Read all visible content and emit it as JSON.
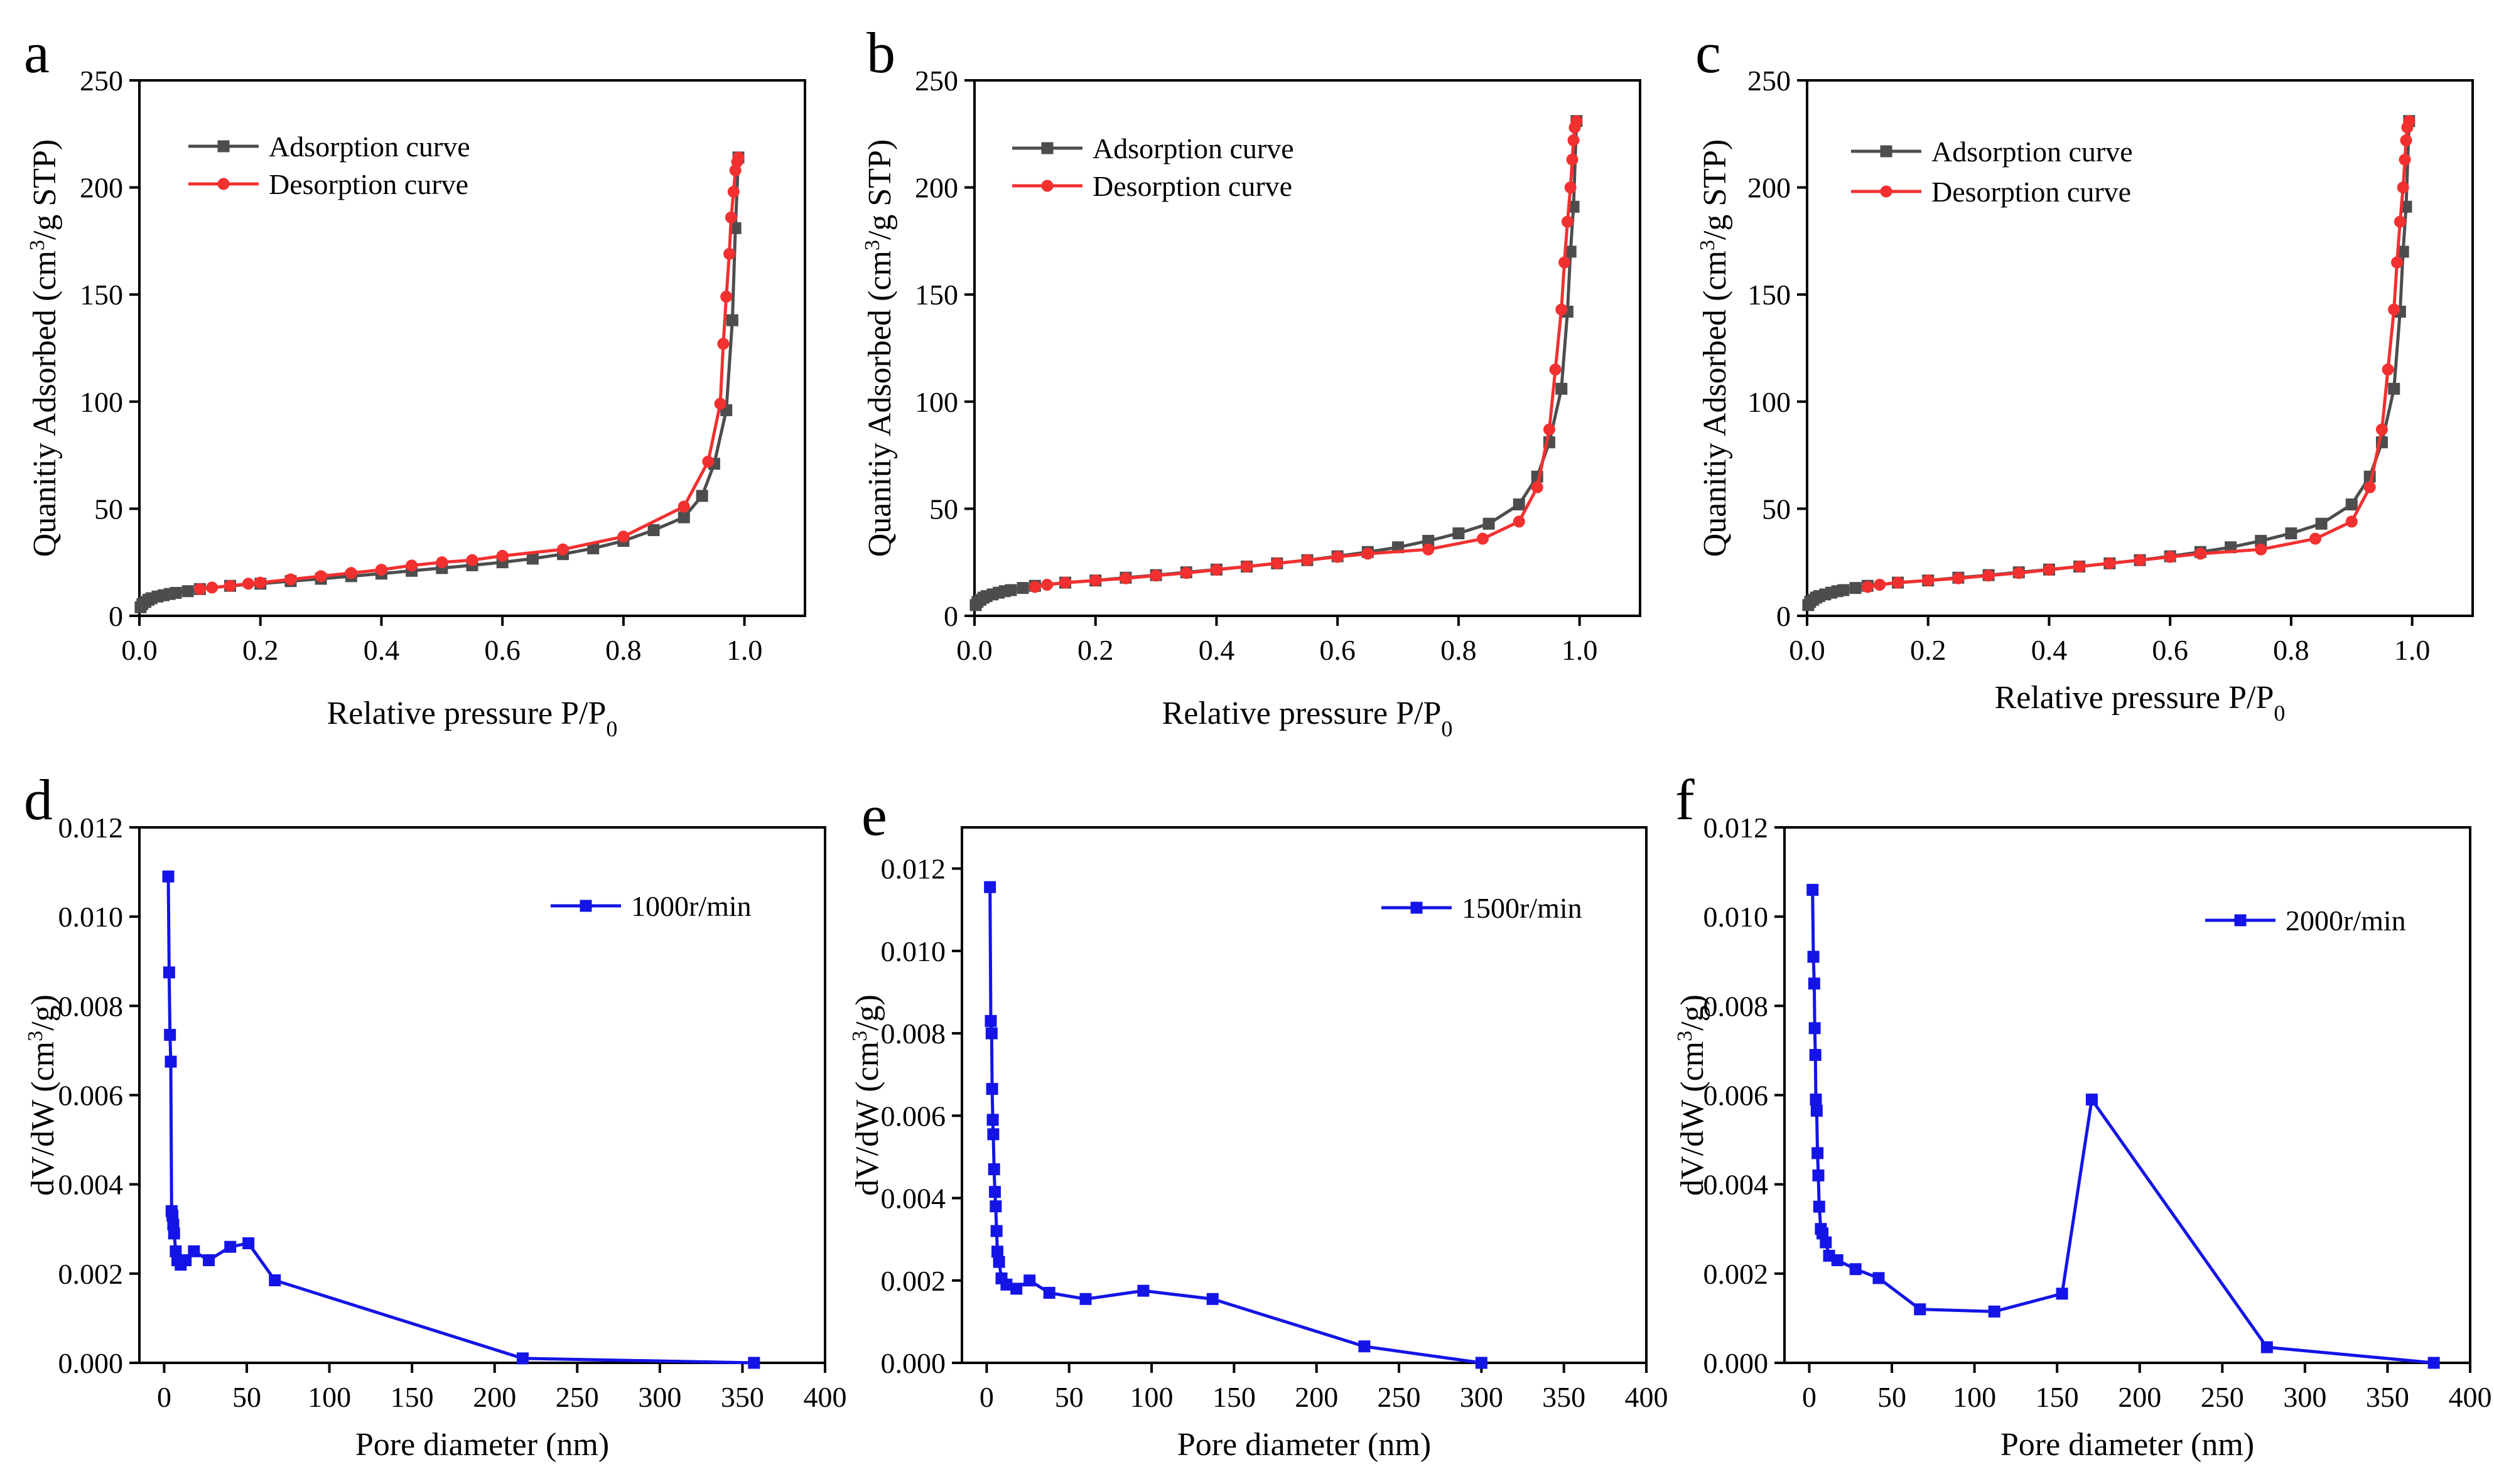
{
  "chart_data": [
    {
      "panel": "a",
      "type": "line",
      "xlabel": "Relative pressure P/P",
      "xlabel_sub": "0",
      "ylabel": "Quanitiy Adsorbed (cm",
      "ylabel_sup": "3",
      "ylabel_tail": "/g STP)",
      "xlim": [
        0,
        1.1
      ],
      "ylim": [
        0,
        250
      ],
      "xticks": [
        "0.0",
        "0.2",
        "0.4",
        "0.6",
        "0.8",
        "1.0"
      ],
      "yticks": [
        "0",
        "50",
        "100",
        "150",
        "200",
        "250"
      ],
      "legend_position": "top-left",
      "series": [
        {
          "name": "Adsorption curve",
          "color": "#4d4d4d",
          "marker": "square",
          "x": [
            0.002,
            0.005,
            0.01,
            0.015,
            0.02,
            0.03,
            0.04,
            0.05,
            0.06,
            0.08,
            0.1,
            0.15,
            0.2,
            0.25,
            0.3,
            0.35,
            0.4,
            0.45,
            0.5,
            0.55,
            0.6,
            0.65,
            0.7,
            0.75,
            0.8,
            0.85,
            0.9,
            0.93,
            0.95,
            0.97,
            0.98,
            0.985,
            0.99
          ],
          "y": [
            4,
            5.5,
            6.5,
            7.5,
            8.2,
            9,
            9.6,
            10.2,
            10.7,
            11.5,
            12.5,
            14,
            15,
            16.2,
            17.3,
            18.5,
            19.7,
            21,
            22.3,
            23.6,
            25,
            26.7,
            28.8,
            31.5,
            35,
            40,
            46,
            56,
            71,
            96,
            138,
            181,
            214
          ]
        },
        {
          "name": "Desorption curve",
          "color": "#f23030",
          "marker": "circle",
          "x": [
            0.99,
            0.988,
            0.985,
            0.982,
            0.978,
            0.975,
            0.97,
            0.965,
            0.96,
            0.94,
            0.9,
            0.8,
            0.7,
            0.6,
            0.55,
            0.5,
            0.45,
            0.4,
            0.35,
            0.3,
            0.25,
            0.2,
            0.18,
            0.15,
            0.12,
            0.1
          ],
          "y": [
            214,
            212,
            208,
            198,
            186,
            169,
            149,
            127,
            99,
            72,
            51,
            37,
            31,
            28,
            26,
            25,
            23.5,
            21.5,
            20,
            18.5,
            17,
            15.5,
            15,
            14,
            13.2,
            12.5
          ]
        }
      ]
    },
    {
      "panel": "b",
      "type": "line",
      "xlabel": "Relative pressure P/P",
      "xlabel_sub": "0",
      "ylabel": "Quanitiy Adsorbed (cm",
      "ylabel_sup": "3",
      "ylabel_tail": "/g STP)",
      "xlim": [
        0,
        1.1
      ],
      "ylim": [
        0,
        250
      ],
      "xticks": [
        "0.0",
        "0.2",
        "0.4",
        "0.6",
        "0.8",
        "1.0"
      ],
      "yticks": [
        "0",
        "50",
        "100",
        "150",
        "200",
        "250"
      ],
      "legend_position": "top-left",
      "series": [
        {
          "name": "Adsorption curve",
          "color": "#4d4d4d",
          "marker": "square",
          "x": [
            0.002,
            0.005,
            0.01,
            0.015,
            0.02,
            0.03,
            0.04,
            0.05,
            0.06,
            0.08,
            0.1,
            0.15,
            0.2,
            0.25,
            0.3,
            0.35,
            0.4,
            0.45,
            0.5,
            0.55,
            0.6,
            0.65,
            0.7,
            0.75,
            0.8,
            0.85,
            0.9,
            0.93,
            0.95,
            0.97,
            0.98,
            0.985,
            0.99,
            0.995
          ],
          "y": [
            5,
            6.5,
            7.5,
            8.5,
            9.2,
            10,
            10.8,
            11.5,
            12,
            13,
            14,
            15.5,
            16.5,
            17.8,
            19,
            20.3,
            21.6,
            23,
            24.5,
            26,
            27.8,
            29.8,
            32,
            35,
            38.5,
            43,
            52,
            65,
            81,
            106,
            142,
            170,
            191,
            231
          ]
        },
        {
          "name": "Desorption curve",
          "color": "#f23030",
          "marker": "circle",
          "x": [
            0.995,
            0.992,
            0.99,
            0.988,
            0.985,
            0.98,
            0.975,
            0.97,
            0.96,
            0.95,
            0.93,
            0.9,
            0.84,
            0.75,
            0.65,
            0.6,
            0.55,
            0.5,
            0.45,
            0.4,
            0.35,
            0.3,
            0.25,
            0.2,
            0.15,
            0.12,
            0.1
          ],
          "y": [
            231,
            228,
            222,
            213,
            200,
            184,
            165,
            143,
            115,
            87,
            60,
            44,
            36,
            31,
            29,
            27.5,
            26,
            24.5,
            23,
            21.5,
            20,
            18.8,
            17.5,
            16.5,
            15.5,
            14.5,
            13.5
          ]
        }
      ]
    },
    {
      "panel": "c",
      "type": "line",
      "xlabel": "Relative pressure  P/P",
      "xlabel_sub": "0",
      "ylabel": "Quanitiy Adsorbed (cm",
      "ylabel_sup": "3",
      "ylabel_tail": "/g STP)",
      "xlim": [
        0,
        1.1
      ],
      "ylim": [
        0,
        250
      ],
      "xticks": [
        "0.0",
        "0.2",
        "0.4",
        "0.6",
        "0.8",
        "1.0"
      ],
      "yticks": [
        "0",
        "50",
        "100",
        "150",
        "200",
        "250"
      ],
      "legend_position": "top-left",
      "series": [
        {
          "name": "Adsorption curve",
          "color": "#4d4d4d",
          "marker": "square",
          "x": [
            0.002,
            0.005,
            0.01,
            0.015,
            0.02,
            0.03,
            0.04,
            0.05,
            0.06,
            0.08,
            0.1,
            0.15,
            0.2,
            0.25,
            0.3,
            0.35,
            0.4,
            0.45,
            0.5,
            0.55,
            0.6,
            0.65,
            0.7,
            0.75,
            0.8,
            0.85,
            0.9,
            0.93,
            0.95,
            0.97,
            0.98,
            0.985,
            0.99,
            0.995
          ],
          "y": [
            5,
            6.5,
            7.5,
            8.5,
            9.2,
            10,
            10.8,
            11.5,
            12,
            13,
            14,
            15.5,
            16.5,
            17.8,
            19,
            20.3,
            21.6,
            23,
            24.5,
            26,
            27.8,
            29.8,
            32,
            35,
            38.5,
            43,
            52,
            65,
            81,
            106,
            142,
            170,
            191,
            231
          ]
        },
        {
          "name": "Desorption curve",
          "color": "#f23030",
          "marker": "circle",
          "x": [
            0.995,
            0.992,
            0.99,
            0.988,
            0.985,
            0.98,
            0.975,
            0.97,
            0.96,
            0.95,
            0.93,
            0.9,
            0.84,
            0.75,
            0.65,
            0.6,
            0.55,
            0.5,
            0.45,
            0.4,
            0.35,
            0.3,
            0.25,
            0.2,
            0.15,
            0.12,
            0.1
          ],
          "y": [
            231,
            228,
            222,
            213,
            200,
            184,
            165,
            143,
            115,
            87,
            60,
            44,
            36,
            31,
            29,
            27.5,
            26,
            24.5,
            23,
            21.5,
            20,
            18.8,
            17.5,
            16.5,
            15.5,
            14.5,
            13.5
          ]
        }
      ]
    },
    {
      "panel": "d",
      "type": "line",
      "xlabel": "Pore diameter (nm)",
      "ylabel": "dV/dW (cm",
      "ylabel_sup": "3",
      "ylabel_tail": "/g)",
      "xlim": [
        -15,
        400
      ],
      "ylim": [
        0,
        0.012
      ],
      "xticks": [
        "0",
        "50",
        "100",
        "150",
        "200",
        "250",
        "300",
        "350",
        "400"
      ],
      "yticks": [
        "0.000",
        "0.002",
        "0.004",
        "0.006",
        "0.008",
        "0.010",
        "0.012"
      ],
      "legend_position": "top-right",
      "series": [
        {
          "name": "1000r/min",
          "color": "#1414e6",
          "marker": "square",
          "x": [
            2.5,
            3,
            3.5,
            4,
            4.5,
            5,
            5.5,
            6,
            7,
            8,
            10,
            13,
            18,
            27,
            40,
            51,
            67,
            217,
            357
          ],
          "y": [
            0.0109,
            0.00875,
            0.00735,
            0.00675,
            0.0034,
            0.0033,
            0.0031,
            0.0029,
            0.0025,
            0.0023,
            0.0022,
            0.0023,
            0.0025,
            0.0023,
            0.0026,
            0.00268,
            0.00185,
            0.0001,
            0.0
          ]
        }
      ]
    },
    {
      "panel": "e",
      "type": "line",
      "xlabel": "Pore diameter (nm)",
      "ylabel": "dV/dW (cm",
      "ylabel_sup": "3",
      "ylabel_tail": "/g)",
      "xlim": [
        -15,
        400
      ],
      "ylim": [
        0,
        0.013
      ],
      "xticks": [
        "0",
        "50",
        "100",
        "150",
        "200",
        "250",
        "300",
        "350",
        "400"
      ],
      "yticks": [
        "0.000",
        "0.002",
        "0.004",
        "0.006",
        "0.008",
        "0.010",
        "0.012"
      ],
      "legend_position": "top-right",
      "series": [
        {
          "name": "1500r/min",
          "color": "#1414e6",
          "marker": "square",
          "x": [
            2,
            2.5,
            3,
            3.3,
            3.7,
            4,
            4.5,
            5,
            5.5,
            6,
            6.5,
            7.5,
            9,
            12,
            18,
            26,
            38,
            60,
            95,
            137,
            229,
            300
          ],
          "y": [
            0.01155,
            0.0083,
            0.008,
            0.00665,
            0.0059,
            0.00555,
            0.0047,
            0.00415,
            0.0038,
            0.0032,
            0.0027,
            0.00245,
            0.00205,
            0.0019,
            0.0018,
            0.002,
            0.0017,
            0.00155,
            0.00175,
            0.00155,
            0.0004,
            0.0
          ]
        }
      ]
    },
    {
      "panel": "f",
      "type": "line",
      "xlabel": "Pore diameter (nm)",
      "ylabel": "dV/dW (cm",
      "ylabel_sup": "3",
      "ylabel_tail": "/g)",
      "xlim": [
        -15,
        400
      ],
      "ylim": [
        0,
        0.012
      ],
      "xticks": [
        "0",
        "50",
        "100",
        "150",
        "200",
        "250",
        "300",
        "350",
        "400"
      ],
      "yticks": [
        "0.000",
        "0.002",
        "0.004",
        "0.006",
        "0.008",
        "0.010",
        "0.012"
      ],
      "legend_position": "top-right",
      "series": [
        {
          "name": "2000r/min",
          "color": "#1414e6",
          "marker": "square",
          "x": [
            2,
            2.5,
            3,
            3.3,
            3.7,
            4,
            4.5,
            5,
            5.5,
            6,
            7,
            8,
            10,
            12,
            17,
            28,
            42,
            67,
            112,
            153,
            171,
            277,
            378
          ],
          "y": [
            0.0106,
            0.0091,
            0.0085,
            0.0075,
            0.0069,
            0.0059,
            0.00565,
            0.0047,
            0.0042,
            0.0035,
            0.003,
            0.0029,
            0.0027,
            0.0024,
            0.0023,
            0.0021,
            0.0019,
            0.0012,
            0.00115,
            0.00155,
            0.0059,
            0.00035,
            0.0
          ]
        }
      ]
    }
  ],
  "panel_labels": [
    "a",
    "b",
    "c",
    "d",
    "e",
    "f"
  ]
}
